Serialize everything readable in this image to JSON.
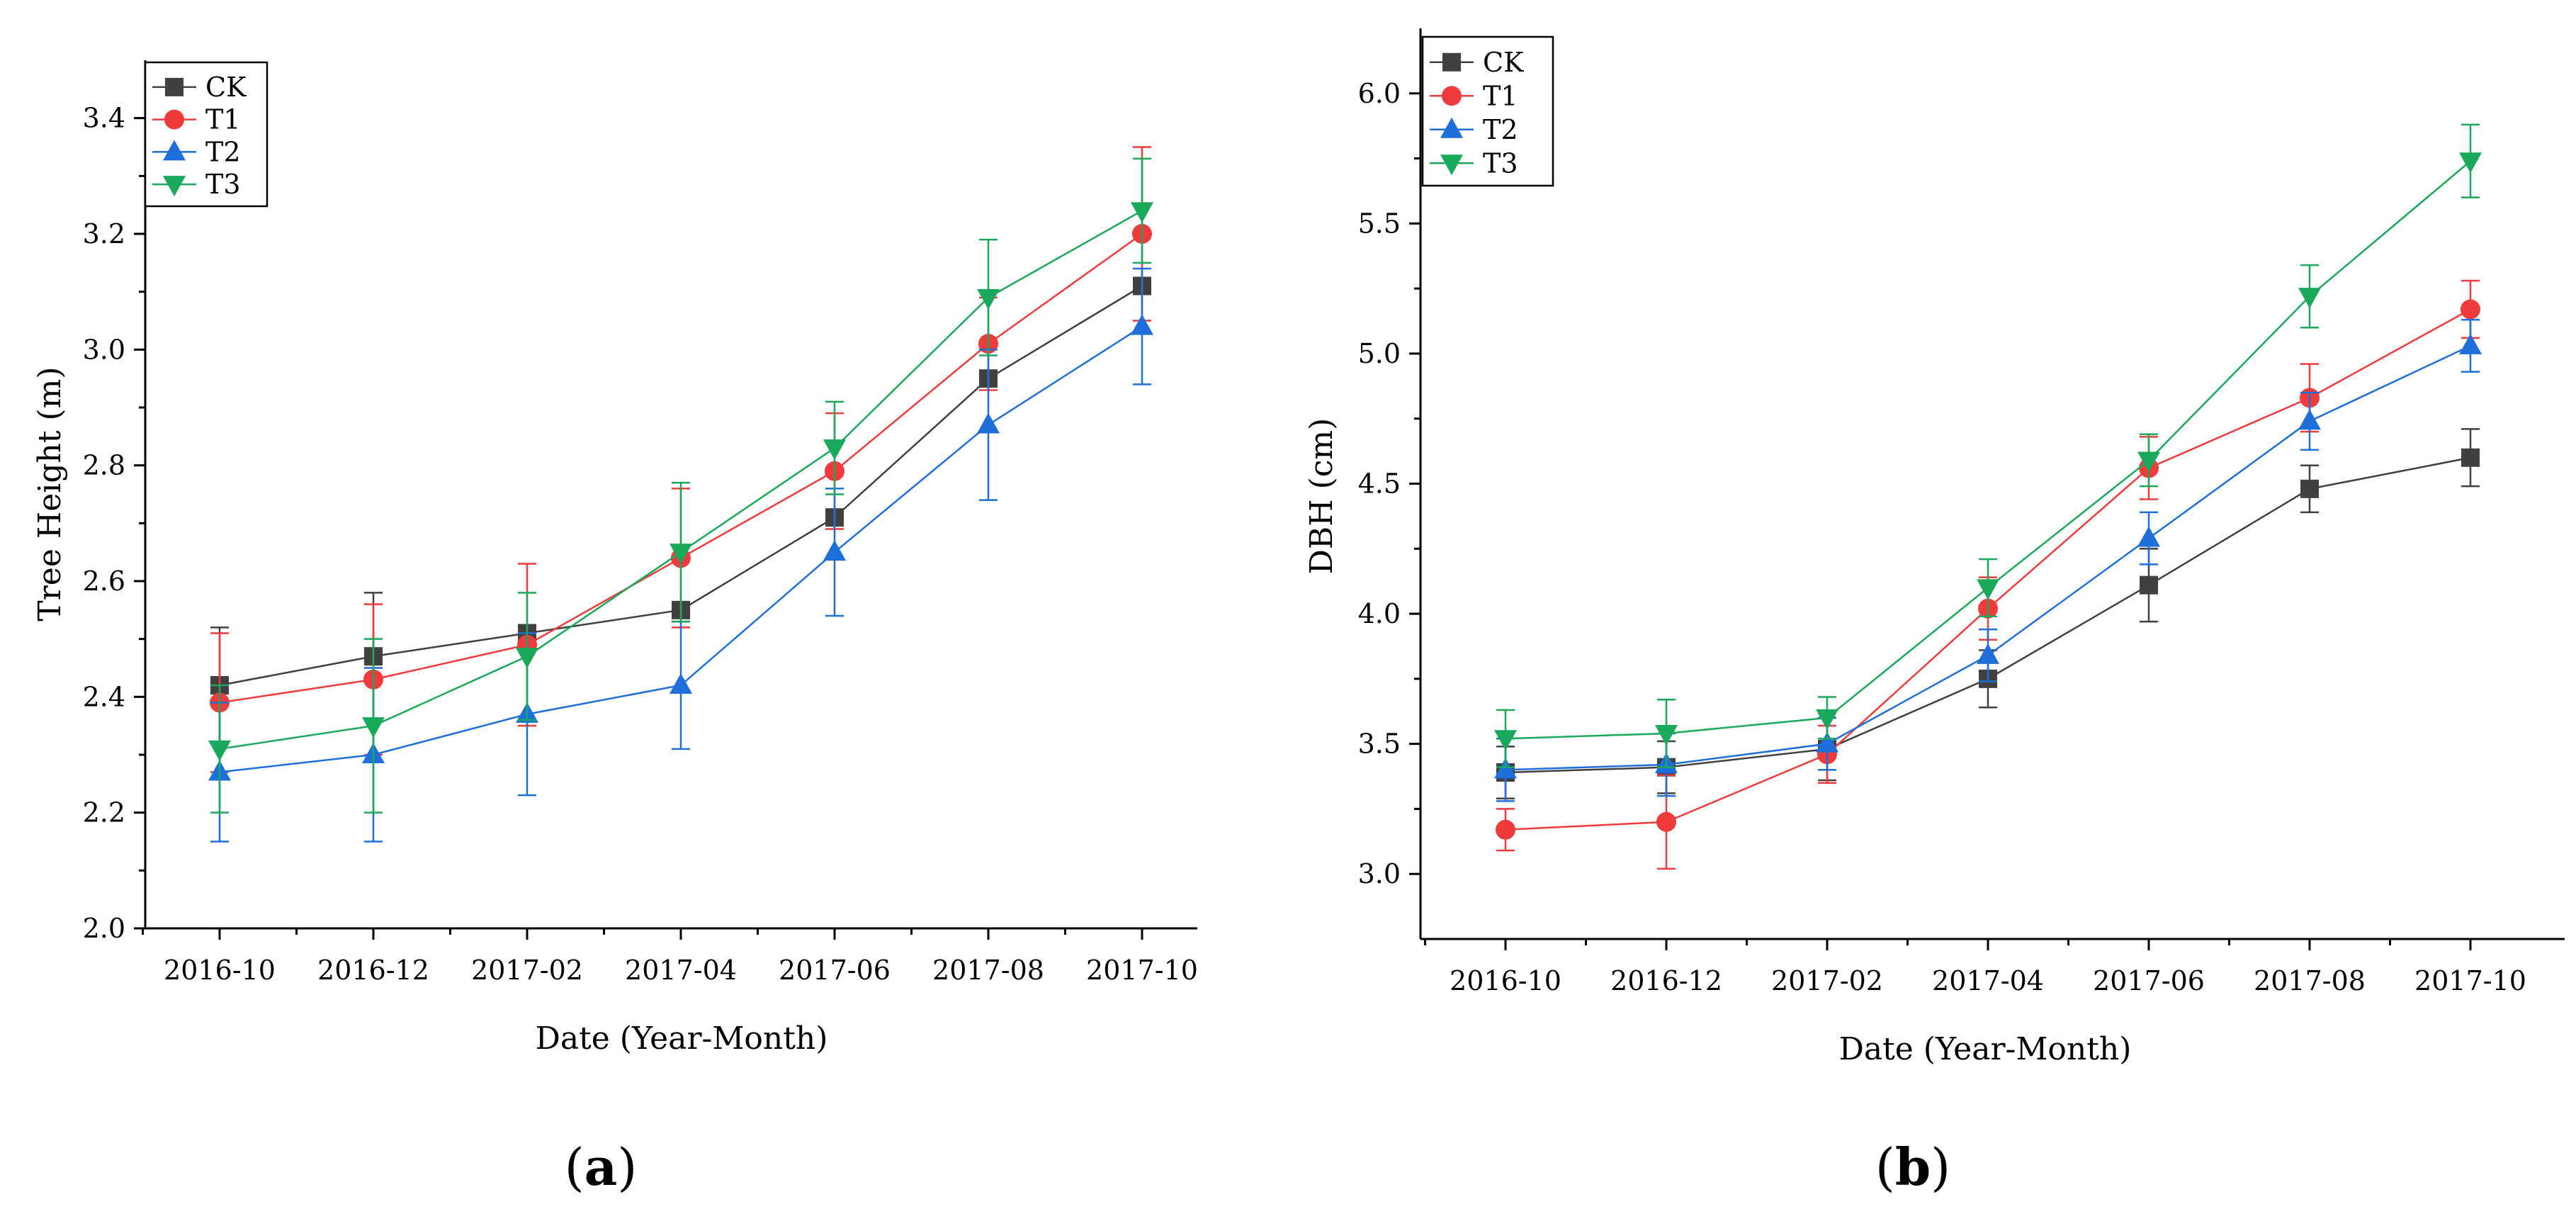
{
  "chart_data": [
    {
      "panel_label": "a",
      "type": "line",
      "xlabel": "Date (Year-Month)",
      "ylabel": "Tree Height (m)",
      "categories": [
        "2016-10",
        "2016-12",
        "2017-02",
        "2017-04",
        "2017-06",
        "2017-08",
        "2017-10"
      ],
      "ylim": [
        2.0,
        3.5
      ],
      "yticks": [
        "2.0",
        "2.2",
        "2.4",
        "2.6",
        "2.8",
        "3.0",
        "3.2",
        "3.4"
      ],
      "legend_position": "top-left",
      "series": [
        {
          "name": "CK",
          "marker": "square",
          "color": "#404040",
          "values": [
            2.42,
            2.47,
            2.51,
            2.55,
            2.71,
            2.95,
            3.11
          ],
          "errors": [
            0.1,
            0.11,
            0.0,
            0.0,
            0.0,
            0.0,
            0.0
          ]
        },
        {
          "name": "T1",
          "marker": "circle",
          "color": "#ef3b3b",
          "values": [
            2.39,
            2.43,
            2.49,
            2.64,
            2.79,
            3.01,
            3.2
          ],
          "errors": [
            0.12,
            0.13,
            0.14,
            0.12,
            0.1,
            0.08,
            0.15
          ]
        },
        {
          "name": "T2",
          "marker": "triangle-up",
          "color": "#1e6fd9",
          "values": [
            2.27,
            2.3,
            2.37,
            2.42,
            2.65,
            2.87,
            3.04
          ],
          "errors": [
            0.12,
            0.15,
            0.14,
            0.11,
            0.11,
            0.13,
            0.1
          ]
        },
        {
          "name": "T3",
          "marker": "triangle-down",
          "color": "#1aa85a",
          "values": [
            2.31,
            2.35,
            2.47,
            2.65,
            2.83,
            3.09,
            3.24
          ],
          "errors": [
            0.11,
            0.15,
            0.11,
            0.12,
            0.08,
            0.1,
            0.09
          ]
        }
      ]
    },
    {
      "panel_label": "b",
      "type": "line",
      "xlabel": "Date (Year-Month)",
      "ylabel": "DBH (cm)",
      "categories": [
        "2016-10",
        "2016-12",
        "2017-02",
        "2017-04",
        "2017-06",
        "2017-08",
        "2017-10"
      ],
      "ylim": [
        2.75,
        6.25
      ],
      "yticks": [
        "3.0",
        "3.5",
        "4.0",
        "4.5",
        "5.0",
        "5.5",
        "6.0"
      ],
      "legend_position": "top-left",
      "series": [
        {
          "name": "CK",
          "marker": "square",
          "color": "#404040",
          "values": [
            3.39,
            3.41,
            3.48,
            3.75,
            4.11,
            4.48,
            4.6
          ],
          "errors": [
            0.1,
            0.1,
            0.12,
            0.11,
            0.14,
            0.09,
            0.11
          ]
        },
        {
          "name": "T1",
          "marker": "circle",
          "color": "#ef3b3b",
          "values": [
            3.17,
            3.2,
            3.46,
            4.02,
            4.56,
            4.83,
            5.17
          ],
          "errors": [
            0.08,
            0.18,
            0.11,
            0.12,
            0.12,
            0.13,
            0.11
          ]
        },
        {
          "name": "T2",
          "marker": "triangle-up",
          "color": "#1e6fd9",
          "values": [
            3.4,
            3.42,
            3.5,
            3.84,
            4.29,
            4.74,
            5.03
          ],
          "errors": [
            0.12,
            0.12,
            0.1,
            0.1,
            0.1,
            0.11,
            0.1
          ]
        },
        {
          "name": "T3",
          "marker": "triangle-down",
          "color": "#1aa85a",
          "values": [
            3.52,
            3.54,
            3.6,
            4.1,
            4.59,
            5.22,
            5.74
          ],
          "errors": [
            0.11,
            0.13,
            0.08,
            0.11,
            0.1,
            0.12,
            0.14
          ]
        }
      ]
    }
  ]
}
